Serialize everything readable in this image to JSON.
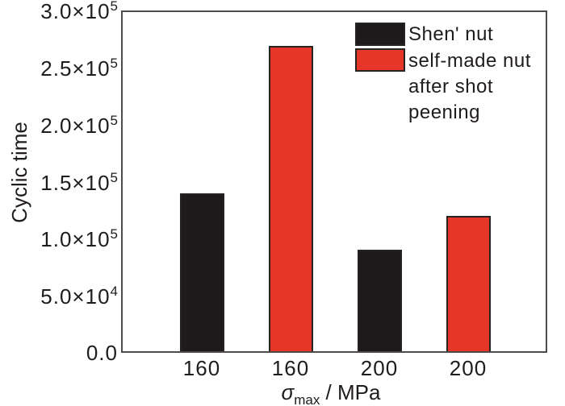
{
  "chart_data": {
    "type": "bar",
    "title": "",
    "ylabel": "Cyclic time",
    "xlabel": "σ_max / MPa",
    "xlabel_parts": {
      "symbol": "σ",
      "subscript": "max",
      "unit": " / MPa"
    },
    "categories": [
      "160",
      "160",
      "200",
      "200"
    ],
    "series": [
      {
        "name": "Shen' nut",
        "color": "#1c1a1a"
      },
      {
        "name": "self-made nut after shot peening",
        "color": "#e63529"
      }
    ],
    "bars": [
      {
        "x": "160",
        "series": 0,
        "value": 140000
      },
      {
        "x": "160",
        "series": 1,
        "value": 270000
      },
      {
        "x": "200",
        "series": 0,
        "value": 90000
      },
      {
        "x": "200",
        "series": 1,
        "value": 120000
      }
    ],
    "ylim": [
      0,
      300000
    ],
    "yticks": [
      {
        "value": 0,
        "label": "0.0"
      },
      {
        "value": 50000,
        "label": "5.0×10^4"
      },
      {
        "value": 100000,
        "label": "1.0×10^5"
      },
      {
        "value": 150000,
        "label": "1.5×10^5"
      },
      {
        "value": 200000,
        "label": "2.0×10^5"
      },
      {
        "value": 250000,
        "label": "2.5×10^5"
      },
      {
        "value": 300000,
        "label": "3.0×10^5"
      }
    ],
    "grid": false,
    "legend_position": "top-right-inside",
    "colors": {
      "bar_border": "#262321",
      "frame": "#4f4b48",
      "text": "#1f1c1b",
      "background": "#ffffff"
    }
  }
}
